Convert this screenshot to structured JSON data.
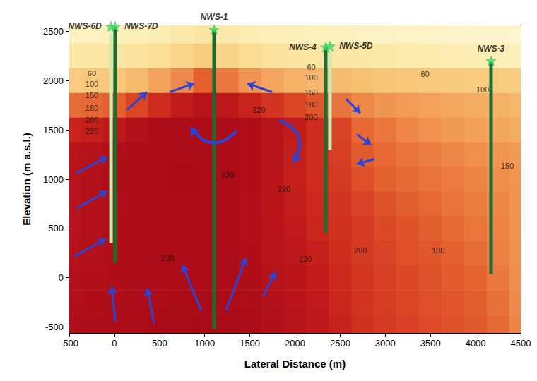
{
  "chart_data": {
    "type": "contour",
    "x_label": "Lateral Distance (m)",
    "y_label": "Elevation (m a.s.l.)",
    "xlim": [
      -500,
      4500
    ],
    "xticks": [
      -500,
      0,
      500,
      1000,
      1500,
      2000,
      2500,
      3000,
      3500,
      4000,
      4500
    ],
    "ylim": [
      -560,
      2560
    ],
    "yticks": [
      -500,
      0,
      500,
      1000,
      1500,
      2000,
      2500
    ],
    "grid": false,
    "temperature_cells": {
      "x": [
        -500,
        -250,
        0,
        250,
        500,
        750,
        1000,
        1250,
        1500,
        1750,
        2000,
        2250,
        2500,
        2750,
        3000,
        3250,
        3500,
        3750,
        4000,
        4250,
        4500
      ],
      "y": [
        2500,
        2250,
        2000,
        1750,
        1500,
        1250,
        1000,
        750,
        500,
        250,
        0,
        -250,
        -500
      ],
      "values": [
        [
          25,
          25,
          27,
          30,
          36,
          42,
          48,
          42,
          36,
          32,
          30,
          28,
          26,
          24,
          22,
          21,
          20,
          19,
          18,
          17,
          16
        ],
        [
          45,
          46,
          48,
          52,
          60,
          72,
          85,
          75,
          62,
          55,
          50,
          48,
          46,
          44,
          42,
          40,
          38,
          36,
          34,
          32,
          30
        ],
        [
          85,
          87,
          90,
          105,
          130,
          155,
          180,
          165,
          145,
          128,
          115,
          108,
          103,
          98,
          93,
          90,
          87,
          86,
          85,
          84,
          83
        ],
        [
          172,
          175,
          180,
          195,
          210,
          220,
          226,
          222,
          215,
          205,
          195,
          185,
          168,
          155,
          145,
          138,
          132,
          126,
          120,
          115,
          110
        ],
        [
          215,
          218,
          222,
          228,
          231,
          232,
          233,
          232,
          230,
          226,
          220,
          210,
          196,
          175,
          166,
          157,
          148,
          140,
          133,
          127,
          121
        ],
        [
          225,
          227,
          230,
          232,
          233,
          233,
          233,
          232,
          230,
          226,
          219,
          209,
          199,
          183,
          175,
          168,
          162,
          157,
          151,
          145,
          140
        ],
        [
          226,
          228,
          231,
          232,
          233,
          234,
          233,
          232,
          230,
          225,
          218,
          210,
          202,
          190,
          180,
          174,
          168,
          163,
          158,
          152,
          146
        ],
        [
          226,
          228,
          230,
          232,
          233,
          233,
          233,
          232,
          229,
          224,
          219,
          212,
          205,
          196,
          188,
          181,
          175,
          168,
          162,
          156,
          148
        ],
        [
          226,
          228,
          230,
          231,
          232,
          233,
          233,
          232,
          229,
          225,
          221,
          214,
          207,
          201,
          193,
          187,
          181,
          174,
          167,
          158,
          149
        ],
        [
          227,
          228,
          230,
          231,
          232,
          233,
          233,
          232,
          230,
          226,
          222,
          217,
          209,
          202,
          196,
          190,
          185,
          180,
          172,
          160,
          150
        ],
        [
          228,
          229,
          230,
          231,
          232,
          233,
          233,
          232,
          230,
          227,
          224,
          220,
          212,
          203,
          198,
          193,
          188,
          183,
          178,
          165,
          152
        ],
        [
          229,
          230,
          231,
          232,
          233,
          234,
          234,
          233,
          231,
          228,
          225,
          221,
          214,
          205,
          200,
          195,
          190,
          186,
          181,
          170,
          155
        ],
        [
          230,
          231,
          232,
          233,
          234,
          235,
          235,
          234,
          232,
          229,
          226,
          222,
          216,
          207,
          202,
          197,
          192,
          188,
          184,
          174,
          158
        ]
      ]
    },
    "contour_labels": [
      {
        "x": -250,
        "y": 2070,
        "value": 60
      },
      {
        "x": -250,
        "y": 1963,
        "value": 100
      },
      {
        "x": -250,
        "y": 1850,
        "value": 150
      },
      {
        "x": -250,
        "y": 1720,
        "value": 180
      },
      {
        "x": -250,
        "y": 1600,
        "value": 200
      },
      {
        "x": -250,
        "y": 1490,
        "value": 220
      },
      {
        "x": 2180,
        "y": 2135,
        "value": 60
      },
      {
        "x": 2180,
        "y": 2030,
        "value": 100
      },
      {
        "x": 2180,
        "y": 1880,
        "value": 150
      },
      {
        "x": 2180,
        "y": 1755,
        "value": 180
      },
      {
        "x": 2180,
        "y": 1630,
        "value": 200
      },
      {
        "x": 1600,
        "y": 1700,
        "value": 220
      },
      {
        "x": 3440,
        "y": 2065,
        "value": 60
      },
      {
        "x": 4078,
        "y": 1906,
        "value": 100
      },
      {
        "x": 4351,
        "y": 1133,
        "value": 150
      },
      {
        "x": 3585,
        "y": 274,
        "value": 180
      },
      {
        "x": 2724,
        "y": 274,
        "value": 200
      },
      {
        "x": 2113,
        "y": 188,
        "value": 220
      },
      {
        "x": 1879,
        "y": 897,
        "value": 220
      },
      {
        "x": 1253,
        "y": 1040,
        "value": 230
      },
      {
        "x": 588,
        "y": 202,
        "value": 230
      }
    ],
    "wells": [
      {
        "name": "NWS-6D",
        "x": -38,
        "top": 2550,
        "bottom": 350,
        "color": "#d4e8b0"
      },
      {
        "name": "NWS-7D",
        "x": 8,
        "top": 2550,
        "bottom": 150,
        "color": "#1e6b30"
      },
      {
        "name": "NWS-1",
        "x": 1104,
        "top": 2520,
        "bottom": -520,
        "color": "#1e6b30"
      },
      {
        "name": "NWS-4",
        "x": 2340,
        "top": 2340,
        "bottom": 460,
        "color": "#1e6b30"
      },
      {
        "name": "NWS-5D",
        "x": 2387,
        "top": 2350,
        "bottom": 1297,
        "color": "#d4e8b0"
      },
      {
        "name": "NWS-3",
        "x": 4171,
        "top": 2200,
        "bottom": 38,
        "color": "#1e6b30"
      }
    ],
    "flow_arrows": [
      {
        "from": [
          -445,
          217
        ],
        "to": [
          -93,
          395
        ]
      },
      {
        "from": [
          -422,
          703
        ],
        "to": [
          -77,
          882
        ]
      },
      {
        "from": [
          -422,
          1061
        ],
        "to": [
          -77,
          1226
        ]
      },
      {
        "from": [
          9,
          -442
        ],
        "to": [
          -30,
          -84
        ]
      },
      {
        "from": [
          439,
          -463
        ],
        "to": [
          361,
          -106
        ]
      },
      {
        "from": [
          963,
          -335
        ],
        "to": [
          752,
          131
        ]
      },
      {
        "from": [
          1237,
          -335
        ],
        "to": [
          1456,
          202
        ]
      },
      {
        "from": [
          1644,
          -191
        ],
        "to": [
          1785,
          59
        ]
      },
      {
        "from": [
          142,
          1705
        ],
        "to": [
          361,
          1884
        ]
      },
      {
        "from": [
          611,
          1884
        ],
        "to": [
          885,
          1970
        ]
      },
      {
        "from": [
          1746,
          1884
        ],
        "to": [
          1472,
          1970
        ]
      },
      {
        "from": [
          2567,
          1813
        ],
        "to": [
          2724,
          1670
        ]
      },
      {
        "from": [
          2684,
          1455
        ],
        "to": [
          2841,
          1348
        ]
      },
      {
        "from": [
          2880,
          1204
        ],
        "to": [
          2684,
          1154
        ]
      }
    ],
    "convection_arrows": [
      {
        "from": [
          1354,
          1491
        ],
        "to": [
          846,
          1526
        ]
      },
      {
        "from": [
          1823,
          1598
        ],
        "to": [
          1980,
          1168
        ]
      }
    ]
  }
}
